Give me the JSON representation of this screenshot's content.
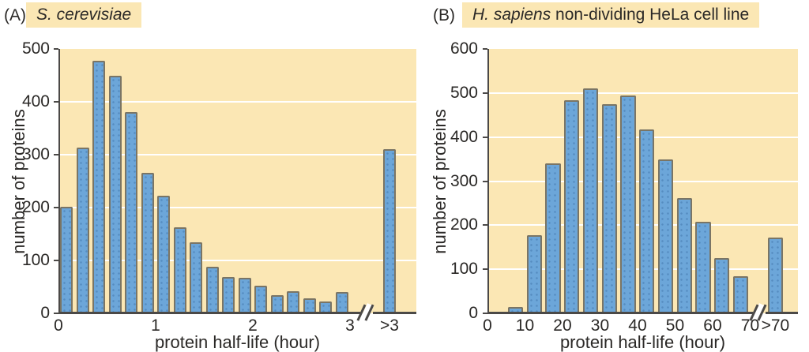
{
  "figure": {
    "description_title_a": "S. cerevisiae",
    "description_title_b": "H. sapiens non-dividing HeLa cell line"
  },
  "colors": {
    "plot_bg": "#FBE7B4",
    "bar_fill": "#6CA6D9",
    "bar_border": "#7A7565",
    "axis": "#4B4947",
    "text": "#2B2927",
    "grid": "#FFFFFF",
    "highlight_bg": "#FBE7B4"
  },
  "chart_data": [
    {
      "type": "bar",
      "panel": "(A)",
      "title_italic": "S. cerevisiae",
      "title_rest": "",
      "ylabel": "number of proteins",
      "xlabel": "protein half-life (hour)",
      "ylim": [
        0,
        500
      ],
      "yticks": [
        0,
        100,
        200,
        300,
        400,
        500
      ],
      "xticks": [
        0,
        1,
        2,
        3
      ],
      "x_max": 3,
      "bin_start_hours": 0,
      "bin_width_hours": 0.1667,
      "grid": true,
      "axis_break": true,
      "values": [
        202,
        313,
        477,
        450,
        380,
        265,
        222,
        162,
        135,
        88,
        68,
        67,
        53,
        34,
        42,
        28,
        22,
        40
      ],
      "overflow": {
        "label": ">3",
        "value": 310
      }
    },
    {
      "type": "bar",
      "panel": "(B)",
      "title_italic": "H. sapiens",
      "title_rest": " non-dividing HeLa cell line",
      "ylabel": "number of proteins",
      "xlabel": "protein half-life (hour)",
      "ylim": [
        0,
        600
      ],
      "yticks": [
        0,
        100,
        200,
        300,
        400,
        500,
        600
      ],
      "xticks": [
        0,
        10,
        20,
        30,
        40,
        50,
        60,
        70
      ],
      "x_max": 70,
      "bin_start_hours": 5,
      "bin_width_hours": 5,
      "grid": true,
      "axis_break": true,
      "values": [
        15,
        178,
        340,
        483,
        510,
        475,
        495,
        418,
        350,
        262,
        207,
        125,
        85
      ],
      "overflow": {
        "label": ">70",
        "value": 172
      }
    }
  ]
}
